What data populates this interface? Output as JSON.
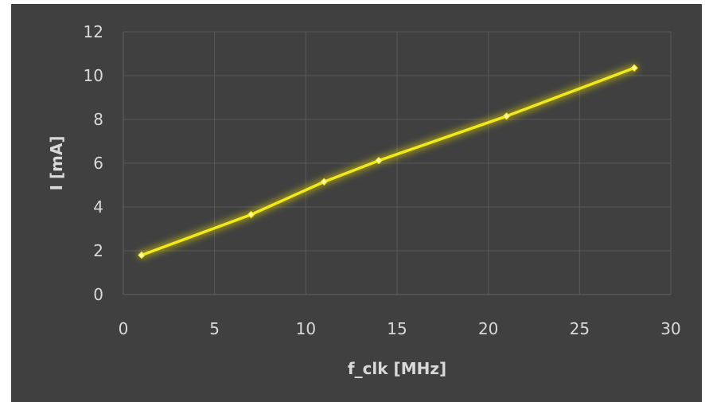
{
  "chart_data": {
    "type": "line",
    "title": "",
    "xlabel": "f_clk [MHz]",
    "ylabel": "I [mA]",
    "xlim": [
      0,
      30
    ],
    "ylim": [
      0,
      12
    ],
    "x_ticks": [
      0,
      5,
      10,
      15,
      20,
      25,
      30
    ],
    "y_ticks": [
      0,
      2,
      4,
      6,
      8,
      10,
      12
    ],
    "x_tick_labels": [
      "0",
      "5",
      "10",
      "15",
      "20",
      "25",
      "30"
    ],
    "y_tick_labels": [
      "0",
      "2",
      "4",
      "6",
      "8",
      "10",
      "12"
    ],
    "grid": true,
    "legend": "none",
    "colors": {
      "plot_background": "#404040",
      "page_background": "#ffffff",
      "grid": "#595959",
      "series": "#f2e81e",
      "glow": "#d4c800",
      "text": "#d9d9d9"
    },
    "series": [
      {
        "x": [
          1,
          7,
          11,
          14,
          21,
          28
        ],
        "y": [
          1.8,
          3.65,
          5.15,
          6.12,
          8.15,
          10.35
        ]
      }
    ]
  }
}
